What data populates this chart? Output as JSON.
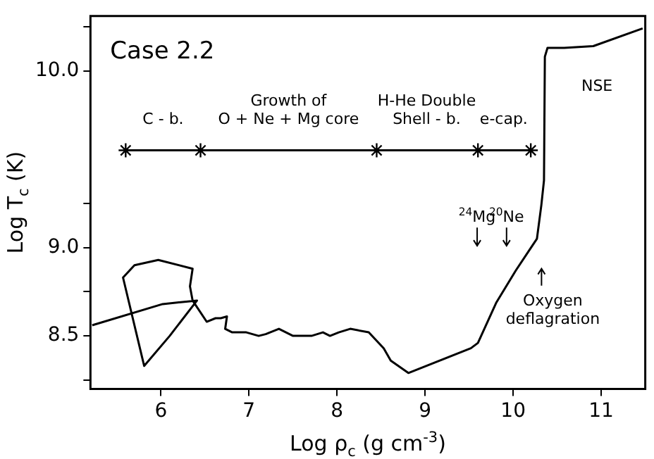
{
  "chart_data": {
    "type": "line",
    "title": "Case 2.2",
    "xlabel": "Log ρ$_{c}$ (g cm$^{-3}$)",
    "ylabel": "Log T$_{c}$ (K)",
    "xlim": [
      5.2,
      11.5
    ],
    "xticks": [
      6,
      7,
      8,
      9,
      10,
      11
    ],
    "ylim": [
      8.2,
      10.31
    ],
    "yticks": [
      {
        "value": 8.25,
        "label": null
      },
      {
        "value": 8.5,
        "label": "8.5"
      },
      {
        "value": 8.75,
        "label": null
      },
      {
        "value": 9,
        "label": "9.0"
      },
      {
        "value": 9.25,
        "label": null
      },
      {
        "value": 10,
        "label": "10.0"
      },
      {
        "value": 10.25,
        "label": null
      }
    ],
    "grid": false,
    "legend": false,
    "marker": "none",
    "line_style": "solid",
    "series": [
      {
        "color": "#000000",
        "x": [
          5.22,
          6.02,
          6.41,
          6.1,
          5.81,
          5.57,
          5.7,
          5.97,
          6.36,
          6.33,
          6.36,
          6.52,
          6.62,
          6.68,
          6.75,
          6.73,
          6.81,
          6.97,
          7.11,
          7.19,
          7.34,
          7.5,
          7.71,
          7.84,
          7.92,
          8.02,
          8.15,
          8.36,
          8.53,
          8.61,
          8.81,
          9.52,
          9.6,
          9.81,
          10.03,
          10.19,
          10.27,
          10.32,
          10.35,
          10.36,
          10.39,
          10.58,
          10.91,
          11.47
        ],
        "values": [
          8.56,
          8.68,
          8.7,
          8.5,
          8.33,
          8.83,
          8.9,
          8.93,
          8.88,
          8.78,
          8.7,
          8.58,
          8.6,
          8.6,
          8.61,
          8.54,
          8.52,
          8.52,
          8.5,
          8.51,
          8.54,
          8.5,
          8.5,
          8.52,
          8.5,
          8.52,
          8.54,
          8.52,
          8.43,
          8.36,
          8.29,
          8.43,
          8.46,
          8.69,
          8.87,
          8.99,
          9.05,
          9.24,
          9.38,
          10.08,
          10.13,
          10.13,
          10.14,
          10.24
        ]
      },
      {
        "color": "#000000",
        "marker": "cross",
        "x": [
          5.6,
          6.45,
          8.45,
          9.6,
          10.2
        ],
        "values": [
          9.55,
          9.55,
          9.55,
          9.55,
          9.55
        ]
      }
    ],
    "annotations": [
      "C - b.",
      "Growth of\nO + Ne + Mg core",
      "H-He Double\nShell - b.",
      "e-cap.",
      "NSE",
      "$^{24}$Mg",
      "$^{20}$Ne",
      "Oxygen\ndeflagration"
    ]
  }
}
